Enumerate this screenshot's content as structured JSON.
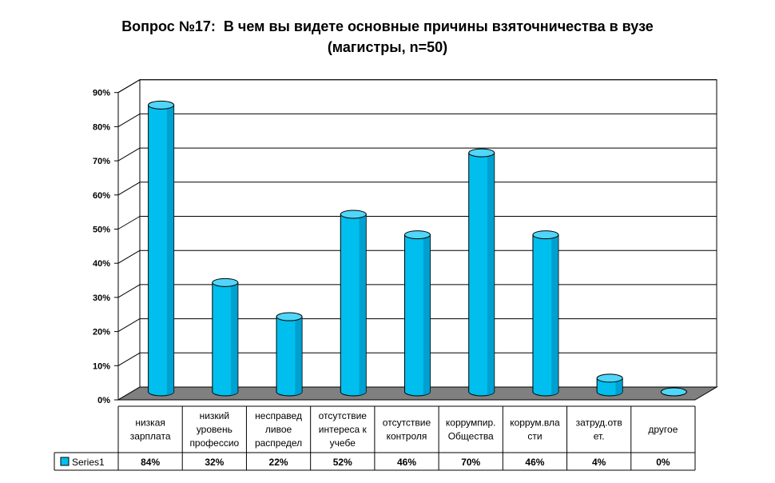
{
  "title_lines": [
    "Вопрос №17:  В чем вы видете основные причины взяточничества в вузе",
    "(магистры, n=50)"
  ],
  "colors": {
    "bar_front": "#00bfee",
    "bar_side": "#0088b8",
    "bar_top": "#4fd6f8",
    "floor": "#808080",
    "grid": "#000000"
  },
  "chart_data": {
    "type": "bar",
    "title": "Вопрос №17:  В чем вы видете основные причины взяточничества в вузе (магистры, n=50)",
    "categories": [
      [
        "низкая",
        "зарплата"
      ],
      [
        "низкий",
        "уровень",
        "профессио"
      ],
      [
        "несправед",
        "ливое",
        "распредел"
      ],
      [
        "отсутствие",
        "интереса к",
        "учебе"
      ],
      [
        "отсутствие",
        "контроля"
      ],
      [
        "коррумпир.",
        "Общества"
      ],
      [
        "коррум.вла",
        "сти"
      ],
      [
        "затруд.отв",
        "ет."
      ],
      [
        "другое"
      ]
    ],
    "series": [
      {
        "name": "Series1",
        "values": [
          84,
          32,
          22,
          52,
          46,
          70,
          46,
          4,
          0
        ],
        "value_labels": [
          "84%",
          "32%",
          "22%",
          "52%",
          "46%",
          "70%",
          "46%",
          "4%",
          "0%"
        ]
      }
    ],
    "y_ticks": [
      "0%",
      "10%",
      "20%",
      "30%",
      "40%",
      "50%",
      "60%",
      "70%",
      "80%",
      "90%"
    ],
    "ylim": [
      0,
      90
    ],
    "grid": true,
    "legend": "table-left"
  }
}
